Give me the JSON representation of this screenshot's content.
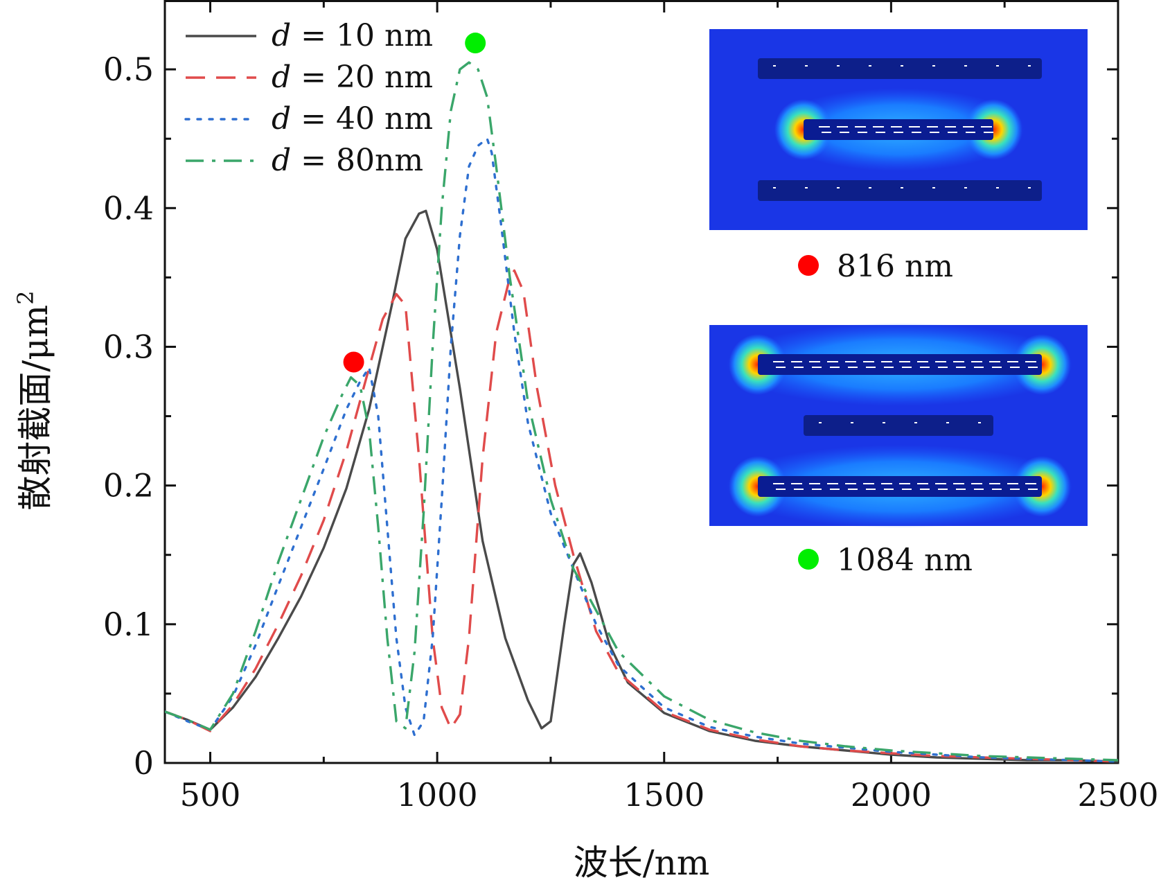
{
  "chart_data": {
    "type": "line",
    "xlabel": "波长/nm",
    "ylabel_main": "散射截面/μm",
    "ylabel_sup": "2",
    "xlim": [
      400,
      2500
    ],
    "ylim": [
      0,
      0.55
    ],
    "x_ticks": [
      500,
      1000,
      1500,
      2000,
      2500
    ],
    "x_ticks_labels": [
      "500",
      "1000",
      "1500",
      "2000",
      "2500"
    ],
    "x_minor_ticks": [
      750,
      1250,
      1750,
      2250
    ],
    "y_ticks": [
      0,
      0.1,
      0.2,
      0.3,
      0.4,
      0.5
    ],
    "y_ticks_labels": [
      "0",
      "0.1",
      "0.2",
      "0.3",
      "0.4",
      "0.5"
    ],
    "y_minor_ticks": [
      0.05,
      0.15,
      0.25,
      0.35,
      0.45
    ],
    "legend_position": "top-left",
    "series": [
      {
        "name": "d = 10 nm",
        "legend_prefix": "d",
        "legend_rest": " = 10 nm",
        "color": "#4a4a4a",
        "dash": "solid",
        "x": [
          400,
          450,
          500,
          550,
          600,
          650,
          700,
          750,
          800,
          850,
          900,
          930,
          960,
          975,
          1000,
          1050,
          1100,
          1150,
          1200,
          1230,
          1250,
          1280,
          1300,
          1315,
          1340,
          1380,
          1420,
          1500,
          1600,
          1700,
          1800,
          1900,
          2000,
          2100,
          2200,
          2300,
          2400,
          2500
        ],
        "y": [
          0.037,
          0.031,
          0.024,
          0.04,
          0.062,
          0.09,
          0.12,
          0.155,
          0.198,
          0.255,
          0.33,
          0.378,
          0.396,
          0.398,
          0.37,
          0.27,
          0.16,
          0.09,
          0.045,
          0.025,
          0.03,
          0.1,
          0.143,
          0.151,
          0.13,
          0.085,
          0.058,
          0.036,
          0.023,
          0.016,
          0.012,
          0.009,
          0.006,
          0.004,
          0.003,
          0.002,
          0.002,
          0.001
        ]
      },
      {
        "name": "d = 20 nm",
        "legend_prefix": "d",
        "legend_rest": " = 20 nm",
        "color": "#e04b4b",
        "dash": "dashed",
        "x": [
          400,
          450,
          500,
          550,
          600,
          650,
          700,
          750,
          800,
          850,
          880,
          910,
          930,
          960,
          990,
          1010,
          1030,
          1050,
          1070,
          1100,
          1130,
          1160,
          1170,
          1190,
          1220,
          1260,
          1300,
          1350,
          1400,
          1500,
          1600,
          1700,
          1800,
          1900,
          2000,
          2100,
          2200,
          2300,
          2400,
          2500
        ],
        "y": [
          0.037,
          0.031,
          0.023,
          0.042,
          0.068,
          0.1,
          0.135,
          0.175,
          0.225,
          0.285,
          0.32,
          0.338,
          0.33,
          0.22,
          0.09,
          0.04,
          0.025,
          0.035,
          0.09,
          0.22,
          0.31,
          0.35,
          0.355,
          0.34,
          0.27,
          0.2,
          0.15,
          0.095,
          0.065,
          0.037,
          0.024,
          0.017,
          0.012,
          0.009,
          0.007,
          0.005,
          0.004,
          0.003,
          0.002,
          0.001
        ]
      },
      {
        "name": "d = 40 nm",
        "legend_prefix": "d",
        "legend_rest": " = 40 nm",
        "color": "#2e6fd0",
        "dash": "dotted",
        "x": [
          400,
          450,
          500,
          550,
          600,
          650,
          700,
          750,
          800,
          830,
          850,
          870,
          890,
          910,
          930,
          950,
          970,
          990,
          1010,
          1030,
          1050,
          1070,
          1090,
          1110,
          1120,
          1140,
          1170,
          1200,
          1250,
          1300,
          1350,
          1400,
          1500,
          1600,
          1700,
          1800,
          1900,
          2000,
          2100,
          2200,
          2300,
          2400,
          2500
        ],
        "y": [
          0.037,
          0.03,
          0.024,
          0.048,
          0.085,
          0.128,
          0.17,
          0.212,
          0.255,
          0.275,
          0.285,
          0.25,
          0.17,
          0.09,
          0.04,
          0.02,
          0.03,
          0.09,
          0.19,
          0.3,
          0.38,
          0.43,
          0.445,
          0.45,
          0.44,
          0.39,
          0.31,
          0.245,
          0.18,
          0.14,
          0.1,
          0.07,
          0.04,
          0.026,
          0.019,
          0.014,
          0.011,
          0.008,
          0.006,
          0.004,
          0.003,
          0.002,
          0.001
        ]
      },
      {
        "name": "d = 80nm",
        "legend_prefix": "d",
        "legend_rest": " = 80nm",
        "color": "#3aa66a",
        "dash": "dashdot",
        "x": [
          400,
          450,
          500,
          550,
          600,
          650,
          700,
          750,
          790,
          810,
          830,
          850,
          870,
          890,
          910,
          930,
          950,
          970,
          990,
          1010,
          1030,
          1050,
          1070,
          1090,
          1110,
          1130,
          1160,
          1200,
          1250,
          1300,
          1350,
          1400,
          1500,
          1600,
          1700,
          1800,
          1900,
          2000,
          2100,
          2200,
          2300,
          2400,
          2500
        ],
        "y": [
          0.037,
          0.031,
          0.024,
          0.05,
          0.095,
          0.145,
          0.19,
          0.235,
          0.265,
          0.278,
          0.272,
          0.24,
          0.17,
          0.09,
          0.03,
          0.025,
          0.08,
          0.18,
          0.3,
          0.4,
          0.47,
          0.5,
          0.505,
          0.5,
          0.48,
          0.43,
          0.35,
          0.26,
          0.19,
          0.14,
          0.11,
          0.08,
          0.048,
          0.031,
          0.022,
          0.016,
          0.012,
          0.009,
          0.007,
          0.005,
          0.004,
          0.003,
          0.002
        ]
      }
    ],
    "markers": [
      {
        "x": 816,
        "y": 0.289,
        "color": "#ff0000"
      },
      {
        "x": 1084,
        "y": 0.519,
        "color": "#00ee00"
      }
    ],
    "insets": [
      {
        "label": "816 nm",
        "dot_color": "#ff0000",
        "mode": "center-bar"
      },
      {
        "label": "1084 nm",
        "dot_color": "#00ee00",
        "mode": "outer-bars"
      }
    ]
  }
}
